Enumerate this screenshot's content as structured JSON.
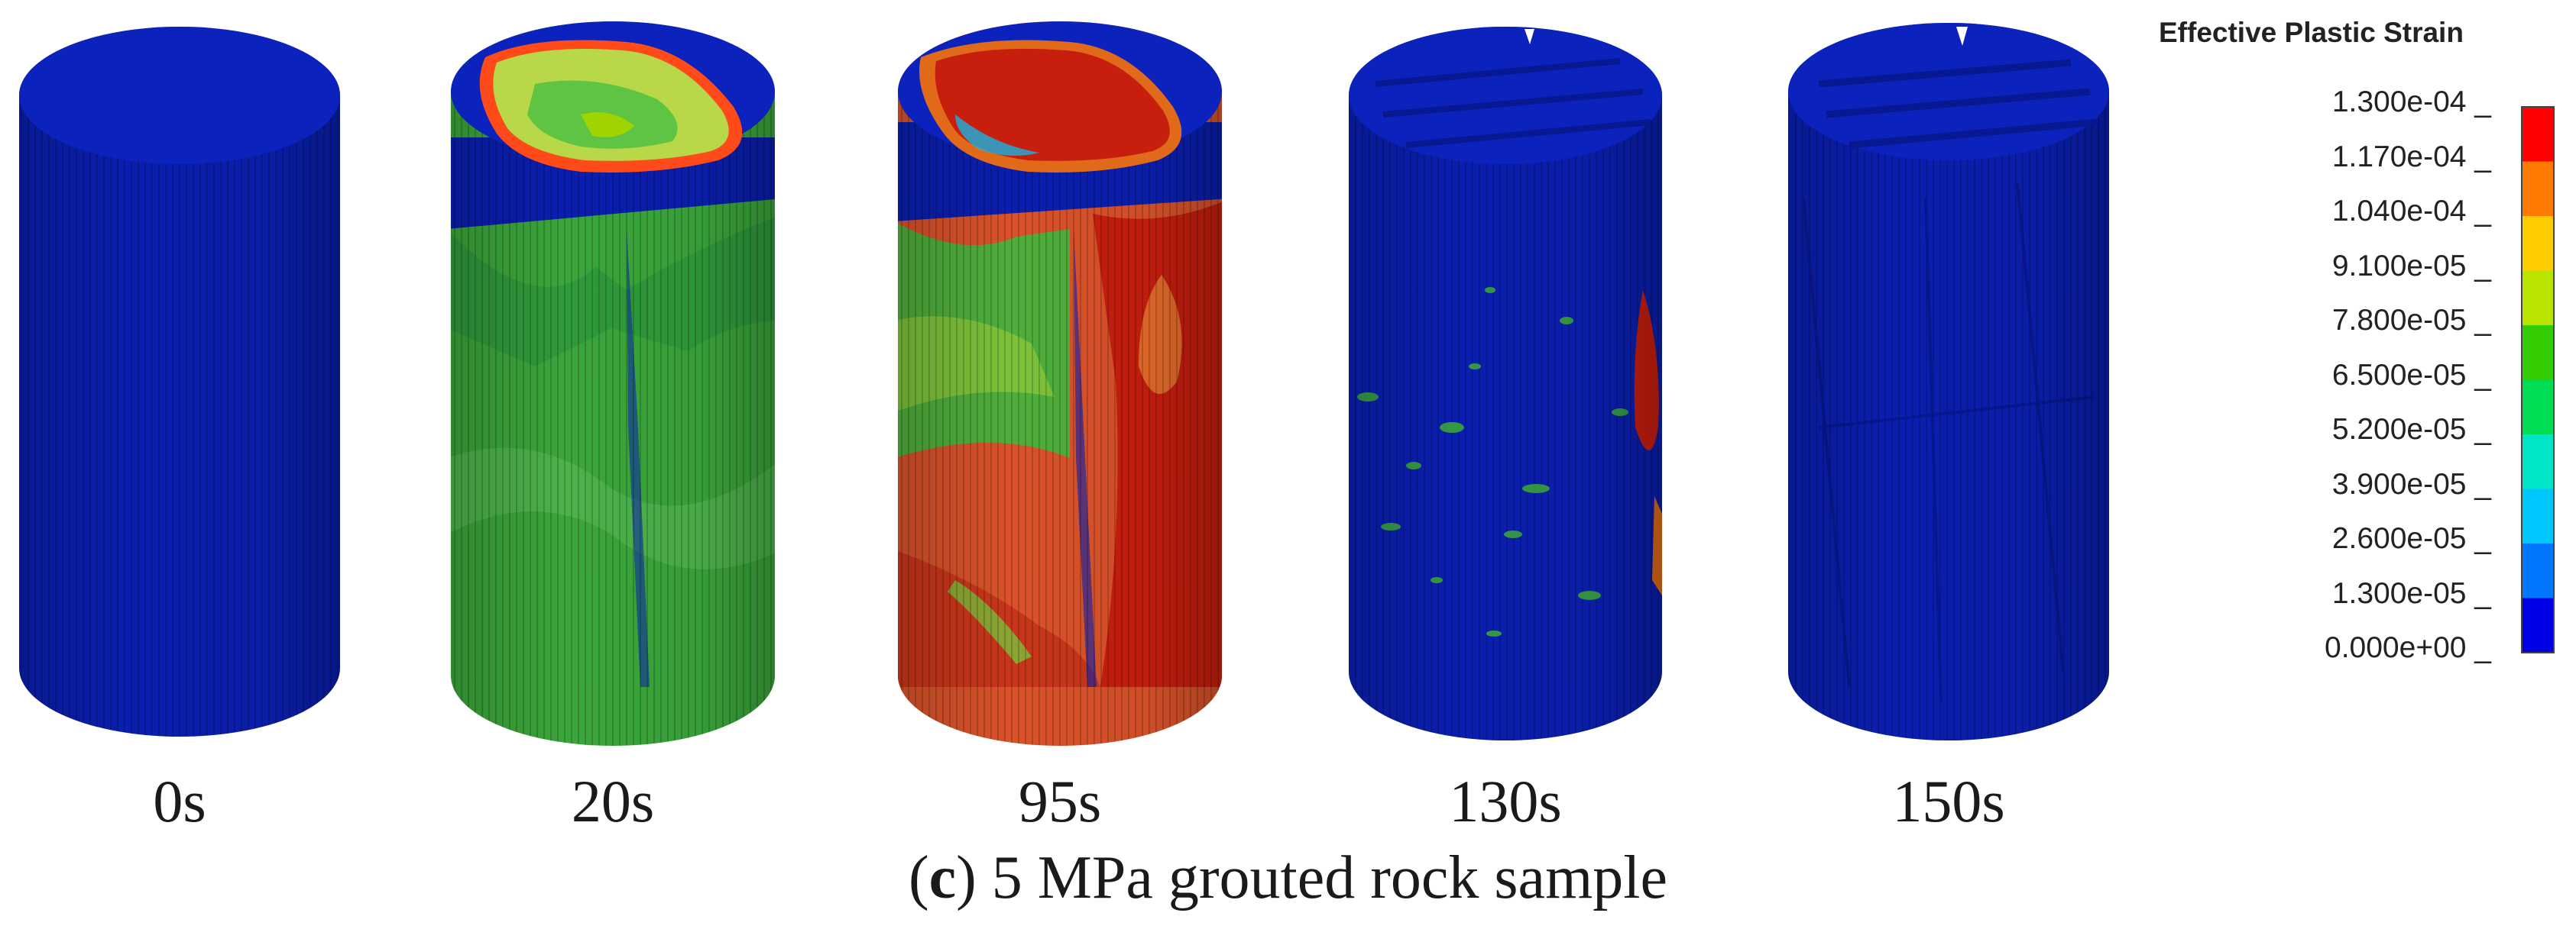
{
  "figure": {
    "samples": [
      {
        "time": "0s"
      },
      {
        "time": "20s"
      },
      {
        "time": "95s"
      },
      {
        "time": "130s"
      },
      {
        "time": "150s"
      }
    ],
    "caption_letter": "c",
    "caption_text": " 5 MPa grouted rock sample"
  },
  "legend": {
    "title": "Effective Plastic Strain",
    "ticks": [
      "1.300e-04",
      "1.170e-04",
      "1.040e-04",
      "9.100e-05",
      "7.800e-05",
      "6.500e-05",
      "5.200e-05",
      "3.900e-05",
      "2.600e-05",
      "1.300e-05",
      "0.000e+00"
    ],
    "colors": [
      "#ff0000",
      "#ff7a00",
      "#ffcc00",
      "#b8e400",
      "#33cc00",
      "#00dd55",
      "#00e5c8",
      "#00c8ff",
      "#0077ff",
      "#0000e6"
    ]
  },
  "colors": {
    "blue": "#0a1fb0",
    "blue_dark": "#07168a",
    "green": "#3aa63a",
    "red": "#c81e0e",
    "orange": "#e06a1a",
    "yellow_green": "#9fd400"
  }
}
